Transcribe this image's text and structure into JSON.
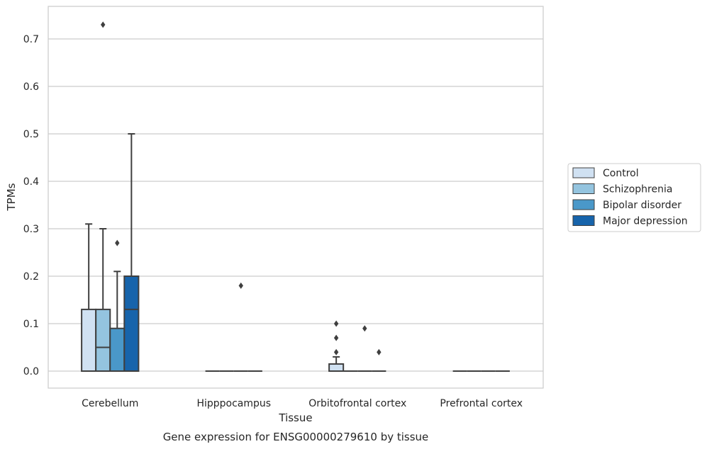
{
  "chart_data": {
    "type": "box",
    "title": "",
    "caption": "Gene expression for ENSG00000279610 by tissue",
    "xlabel": "Tissue",
    "ylabel": "TPMs",
    "ylim": [
      -0.035,
      0.77
    ],
    "yticks": [
      0.0,
      0.1,
      0.2,
      0.3,
      0.4,
      0.5,
      0.6,
      0.7
    ],
    "ytick_labels": [
      "0.0",
      "0.1",
      "0.2",
      "0.3",
      "0.4",
      "0.5",
      "0.6",
      "0.7"
    ],
    "grid": "horizontal",
    "legend_position": "right",
    "categories": [
      "Cerebellum",
      "Hipppocampus",
      "Orbitofrontal cortex",
      "Prefrontal cortex"
    ],
    "series": [
      {
        "name": "Control",
        "color": "#d0e1f2",
        "boxes": [
          {
            "min": 0.0,
            "q1": 0.0,
            "median": 0.0,
            "q3": 0.13,
            "max": 0.31,
            "outliers": []
          },
          {
            "min": 0.0,
            "q1": 0.0,
            "median": 0.0,
            "q3": 0.0,
            "max": 0.0,
            "outliers": []
          },
          {
            "min": 0.0,
            "q1": 0.0,
            "median": 0.0,
            "q3": 0.015,
            "max": 0.03,
            "outliers": [
              0.04,
              0.07,
              0.1
            ]
          },
          {
            "min": 0.0,
            "q1": 0.0,
            "median": 0.0,
            "q3": 0.0,
            "max": 0.0,
            "outliers": []
          }
        ]
      },
      {
        "name": "Schizophrenia",
        "color": "#94c4df",
        "boxes": [
          {
            "min": 0.0,
            "q1": 0.0,
            "median": 0.05,
            "q3": 0.13,
            "max": 0.3,
            "outliers": [
              0.73
            ]
          },
          {
            "min": 0.0,
            "q1": 0.0,
            "median": 0.0,
            "q3": 0.0,
            "max": 0.0,
            "outliers": []
          },
          {
            "min": 0.0,
            "q1": 0.0,
            "median": 0.0,
            "q3": 0.0,
            "max": 0.0,
            "outliers": []
          },
          {
            "min": 0.0,
            "q1": 0.0,
            "median": 0.0,
            "q3": 0.0,
            "max": 0.0,
            "outliers": []
          }
        ]
      },
      {
        "name": "Bipolar disorder",
        "color": "#4a98c9",
        "boxes": [
          {
            "min": 0.0,
            "q1": 0.0,
            "median": 0.0,
            "q3": 0.09,
            "max": 0.21,
            "outliers": [
              0.27
            ]
          },
          {
            "min": 0.0,
            "q1": 0.0,
            "median": 0.0,
            "q3": 0.0,
            "max": 0.0,
            "outliers": [
              0.18
            ]
          },
          {
            "min": 0.0,
            "q1": 0.0,
            "median": 0.0,
            "q3": 0.0,
            "max": 0.0,
            "outliers": [
              0.09
            ]
          },
          {
            "min": 0.0,
            "q1": 0.0,
            "median": 0.0,
            "q3": 0.0,
            "max": 0.0,
            "outliers": []
          }
        ]
      },
      {
        "name": "Major depression",
        "color": "#1764ab",
        "boxes": [
          {
            "min": 0.0,
            "q1": 0.0,
            "median": 0.13,
            "q3": 0.2,
            "max": 0.5,
            "outliers": []
          },
          {
            "min": 0.0,
            "q1": 0.0,
            "median": 0.0,
            "q3": 0.0,
            "max": 0.0,
            "outliers": []
          },
          {
            "min": 0.0,
            "q1": 0.0,
            "median": 0.0,
            "q3": 0.0,
            "max": 0.0,
            "outliers": [
              0.04
            ]
          },
          {
            "min": 0.0,
            "q1": 0.0,
            "median": 0.0,
            "q3": 0.0,
            "max": 0.0,
            "outliers": []
          }
        ]
      }
    ]
  }
}
